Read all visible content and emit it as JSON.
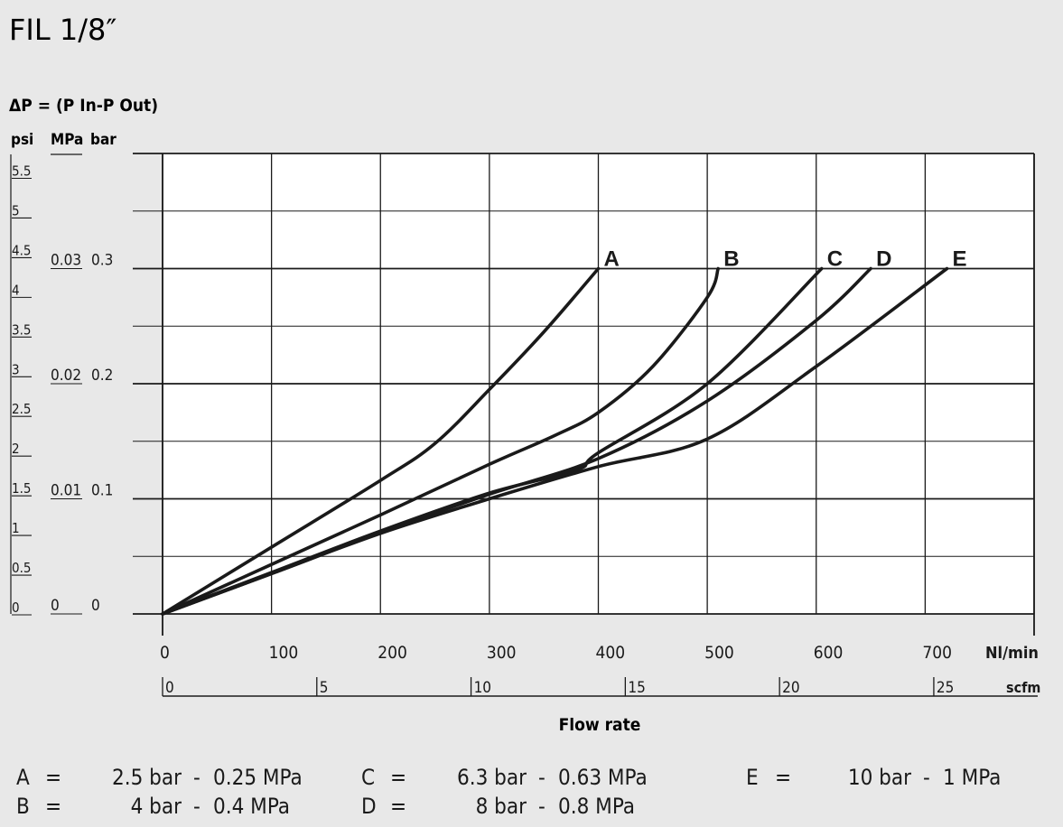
{
  "title": "FIL 1/8″",
  "y_heading": "ΔP = (P In-P Out)",
  "unit_headers": {
    "psi": "psi",
    "mpa": "MPa",
    "bar": "bar"
  },
  "psi_ticks": [
    "5.5",
    "5",
    "4.5",
    "4",
    "3.5",
    "3",
    "2.5",
    "2",
    "1.5",
    "1",
    "0.5",
    "0"
  ],
  "mpa_ticks": [
    "0.03",
    "0.02",
    "0.01",
    "0"
  ],
  "bar_ticks": [
    "0.3",
    "0.2",
    "0.1",
    "0"
  ],
  "x_ticks": [
    "0",
    "100",
    "200",
    "300",
    "400",
    "500",
    "600",
    "700"
  ],
  "x_unit": "Nl/min",
  "scfm_ticks": [
    "0",
    "5",
    "10",
    "15",
    "20",
    "25"
  ],
  "scfm_unit": "scfm",
  "x_title": "Flow rate",
  "legend": [
    {
      "key": "A",
      "eq": "=",
      "bar": "2.5 bar",
      "sep": "-",
      "mpa": "0.25 MPa"
    },
    {
      "key": "B",
      "eq": "=",
      "bar": "4 bar",
      "sep": "-",
      "mpa": "0.4 MPa"
    },
    {
      "key": "C",
      "eq": "=",
      "bar": "6.3 bar",
      "sep": "-",
      "mpa": "0.63 MPa"
    },
    {
      "key": "D",
      "eq": "=",
      "bar": "8 bar",
      "sep": "-",
      "mpa": "0.8 MPa"
    },
    {
      "key": "E",
      "eq": "=",
      "bar": "10 bar",
      "sep": "-",
      "mpa": "1 MPa"
    }
  ],
  "colors": {
    "background": "#e8e8e8",
    "plot": "#ffffff",
    "ink": "#1a1a1a"
  },
  "chart_data": {
    "type": "line",
    "title": "FIL 1/8″",
    "xlabel": "Flow rate",
    "ylabel": "ΔP = (P In-P Out)",
    "x_unit": "Nl/min",
    "y_unit": "bar",
    "xlim": [
      0,
      800
    ],
    "ylim": [
      0,
      0.4
    ],
    "grid": true,
    "series": [
      {
        "name": "A",
        "x": [
          0,
          100,
          200,
          250,
          300,
          350,
          400
        ],
        "y": [
          0,
          0.058,
          0.116,
          0.148,
          0.195,
          0.245,
          0.3
        ]
      },
      {
        "name": "B",
        "x": [
          0,
          100,
          200,
          300,
          360,
          400,
          450,
          500,
          510
        ],
        "y": [
          0,
          0.043,
          0.086,
          0.13,
          0.155,
          0.175,
          0.215,
          0.275,
          0.3
        ]
      },
      {
        "name": "C",
        "x": [
          0,
          100,
          200,
          300,
          380,
          400,
          500,
          605
        ],
        "y": [
          0,
          0.036,
          0.072,
          0.105,
          0.125,
          0.14,
          0.2,
          0.3
        ]
      },
      {
        "name": "D",
        "x": [
          0,
          100,
          200,
          300,
          400,
          500,
          600,
          650
        ],
        "y": [
          0,
          0.035,
          0.071,
          0.104,
          0.135,
          0.185,
          0.255,
          0.3
        ]
      },
      {
        "name": "E",
        "x": [
          0,
          100,
          200,
          300,
          400,
          500,
          600,
          720
        ],
        "y": [
          0,
          0.035,
          0.07,
          0.1,
          0.128,
          0.152,
          0.215,
          0.3
        ]
      }
    ]
  }
}
